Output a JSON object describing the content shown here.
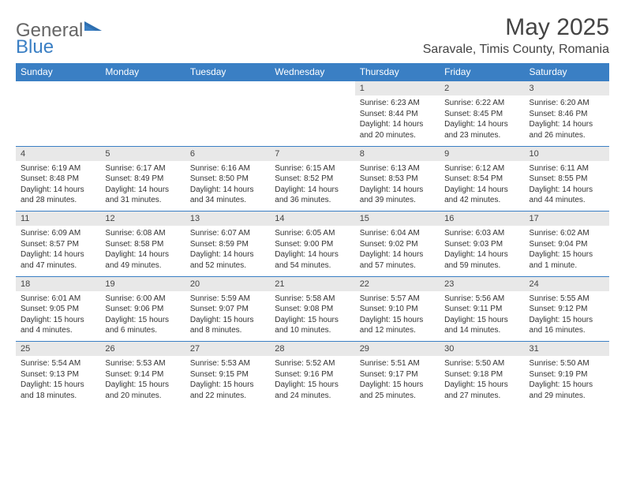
{
  "logo": {
    "general": "General",
    "blue": "Blue"
  },
  "title": "May 2025",
  "location": "Saravale, Timis County, Romania",
  "colors": {
    "header_bg": "#3a7fc4",
    "header_text": "#ffffff",
    "numrow_bg": "#e8e8e8",
    "text": "#333333",
    "border": "#3a7fc4"
  },
  "day_names": [
    "Sunday",
    "Monday",
    "Tuesday",
    "Wednesday",
    "Thursday",
    "Friday",
    "Saturday"
  ],
  "weeks": [
    {
      "days": [
        null,
        null,
        null,
        null,
        {
          "n": "1",
          "sunrise": "6:23 AM",
          "sunset": "8:44 PM",
          "daylight": "14 hours and 20 minutes."
        },
        {
          "n": "2",
          "sunrise": "6:22 AM",
          "sunset": "8:45 PM",
          "daylight": "14 hours and 23 minutes."
        },
        {
          "n": "3",
          "sunrise": "6:20 AM",
          "sunset": "8:46 PM",
          "daylight": "14 hours and 26 minutes."
        }
      ]
    },
    {
      "days": [
        {
          "n": "4",
          "sunrise": "6:19 AM",
          "sunset": "8:48 PM",
          "daylight": "14 hours and 28 minutes."
        },
        {
          "n": "5",
          "sunrise": "6:17 AM",
          "sunset": "8:49 PM",
          "daylight": "14 hours and 31 minutes."
        },
        {
          "n": "6",
          "sunrise": "6:16 AM",
          "sunset": "8:50 PM",
          "daylight": "14 hours and 34 minutes."
        },
        {
          "n": "7",
          "sunrise": "6:15 AM",
          "sunset": "8:52 PM",
          "daylight": "14 hours and 36 minutes."
        },
        {
          "n": "8",
          "sunrise": "6:13 AM",
          "sunset": "8:53 PM",
          "daylight": "14 hours and 39 minutes."
        },
        {
          "n": "9",
          "sunrise": "6:12 AM",
          "sunset": "8:54 PM",
          "daylight": "14 hours and 42 minutes."
        },
        {
          "n": "10",
          "sunrise": "6:11 AM",
          "sunset": "8:55 PM",
          "daylight": "14 hours and 44 minutes."
        }
      ]
    },
    {
      "days": [
        {
          "n": "11",
          "sunrise": "6:09 AM",
          "sunset": "8:57 PM",
          "daylight": "14 hours and 47 minutes."
        },
        {
          "n": "12",
          "sunrise": "6:08 AM",
          "sunset": "8:58 PM",
          "daylight": "14 hours and 49 minutes."
        },
        {
          "n": "13",
          "sunrise": "6:07 AM",
          "sunset": "8:59 PM",
          "daylight": "14 hours and 52 minutes."
        },
        {
          "n": "14",
          "sunrise": "6:05 AM",
          "sunset": "9:00 PM",
          "daylight": "14 hours and 54 minutes."
        },
        {
          "n": "15",
          "sunrise": "6:04 AM",
          "sunset": "9:02 PM",
          "daylight": "14 hours and 57 minutes."
        },
        {
          "n": "16",
          "sunrise": "6:03 AM",
          "sunset": "9:03 PM",
          "daylight": "14 hours and 59 minutes."
        },
        {
          "n": "17",
          "sunrise": "6:02 AM",
          "sunset": "9:04 PM",
          "daylight": "15 hours and 1 minute."
        }
      ]
    },
    {
      "days": [
        {
          "n": "18",
          "sunrise": "6:01 AM",
          "sunset": "9:05 PM",
          "daylight": "15 hours and 4 minutes."
        },
        {
          "n": "19",
          "sunrise": "6:00 AM",
          "sunset": "9:06 PM",
          "daylight": "15 hours and 6 minutes."
        },
        {
          "n": "20",
          "sunrise": "5:59 AM",
          "sunset": "9:07 PM",
          "daylight": "15 hours and 8 minutes."
        },
        {
          "n": "21",
          "sunrise": "5:58 AM",
          "sunset": "9:08 PM",
          "daylight": "15 hours and 10 minutes."
        },
        {
          "n": "22",
          "sunrise": "5:57 AM",
          "sunset": "9:10 PM",
          "daylight": "15 hours and 12 minutes."
        },
        {
          "n": "23",
          "sunrise": "5:56 AM",
          "sunset": "9:11 PM",
          "daylight": "15 hours and 14 minutes."
        },
        {
          "n": "24",
          "sunrise": "5:55 AM",
          "sunset": "9:12 PM",
          "daylight": "15 hours and 16 minutes."
        }
      ]
    },
    {
      "days": [
        {
          "n": "25",
          "sunrise": "5:54 AM",
          "sunset": "9:13 PM",
          "daylight": "15 hours and 18 minutes."
        },
        {
          "n": "26",
          "sunrise": "5:53 AM",
          "sunset": "9:14 PM",
          "daylight": "15 hours and 20 minutes."
        },
        {
          "n": "27",
          "sunrise": "5:53 AM",
          "sunset": "9:15 PM",
          "daylight": "15 hours and 22 minutes."
        },
        {
          "n": "28",
          "sunrise": "5:52 AM",
          "sunset": "9:16 PM",
          "daylight": "15 hours and 24 minutes."
        },
        {
          "n": "29",
          "sunrise": "5:51 AM",
          "sunset": "9:17 PM",
          "daylight": "15 hours and 25 minutes."
        },
        {
          "n": "30",
          "sunrise": "5:50 AM",
          "sunset": "9:18 PM",
          "daylight": "15 hours and 27 minutes."
        },
        {
          "n": "31",
          "sunrise": "5:50 AM",
          "sunset": "9:19 PM",
          "daylight": "15 hours and 29 minutes."
        }
      ]
    }
  ],
  "labels": {
    "sunrise": "Sunrise: ",
    "sunset": "Sunset: ",
    "daylight": "Daylight: "
  }
}
